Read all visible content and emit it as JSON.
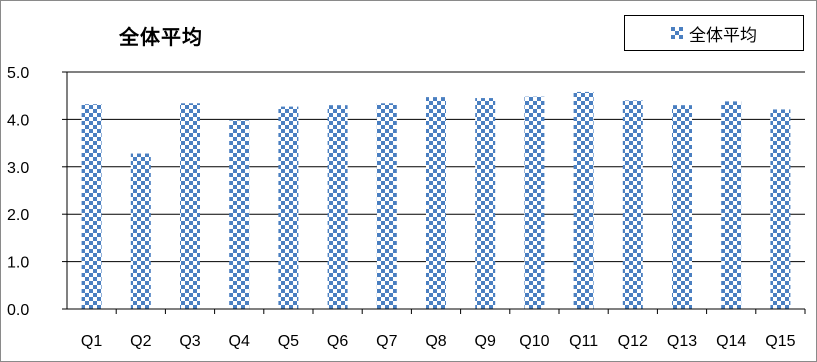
{
  "chart_data": {
    "type": "bar",
    "title": "全体平均",
    "categories": [
      "Q1",
      "Q2",
      "Q3",
      "Q4",
      "Q5",
      "Q6",
      "Q7",
      "Q8",
      "Q9",
      "Q10",
      "Q11",
      "Q12",
      "Q13",
      "Q14",
      "Q15"
    ],
    "series": [
      {
        "name": "全体平均",
        "values": [
          4.32,
          3.28,
          4.34,
          3.98,
          4.27,
          4.3,
          4.34,
          4.47,
          4.45,
          4.48,
          4.58,
          4.4,
          4.3,
          4.38,
          4.21
        ]
      }
    ],
    "yticks": [
      "0.0",
      "1.0",
      "2.0",
      "3.0",
      "4.0",
      "5.0"
    ],
    "ylim": [
      0,
      5
    ],
    "grid": true,
    "legend_position": "top-right",
    "colors": {
      "bar_dark": "#4a7fc1",
      "bar_light": "#ffffff",
      "grid": "#000000"
    }
  }
}
